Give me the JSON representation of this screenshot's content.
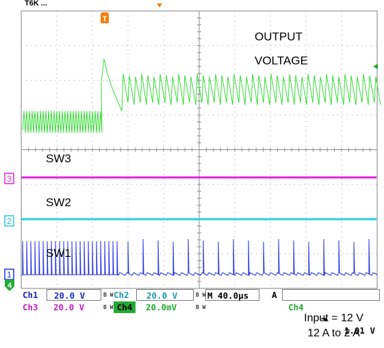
{
  "header": {
    "partial_text": "T6K ..."
  },
  "traces": {
    "output": {
      "label_line1": "OUTPUT",
      "label_line2": "VOLTAGE",
      "color": "#33dd33"
    },
    "sw3": {
      "label": "SW3",
      "marker": "3",
      "color": "#e022e0"
    },
    "sw2": {
      "label": "SW2",
      "marker": "2",
      "color": "#22cfdf"
    },
    "sw1": {
      "label": "SW1",
      "marker": "1",
      "color": "#2030e0"
    },
    "ch4_marker": "4"
  },
  "trigger": {
    "label": "T",
    "color": "#f08010"
  },
  "status": {
    "ch1_name": "Ch1",
    "ch1_value": "20.0 V",
    "ch2_name": "Ch2",
    "ch2_value": "20.0 V",
    "ch3_name": "Ch3",
    "ch3_value": "20.0 V",
    "ch4_name": "Ch4",
    "ch4_value": "20.0mV",
    "bw": "B W",
    "timebase": "M 40.0µs",
    "trig_mode": "A",
    "trig_source": "Ch4",
    "trig_slope": "⬎",
    "trig_level": "1.01 V"
  },
  "caption": {
    "line1": "Input = 12 V",
    "line2": "12 A to 2 A"
  }
}
